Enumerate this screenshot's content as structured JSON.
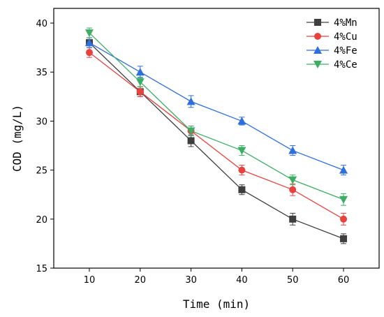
{
  "chart_data": {
    "type": "line",
    "title": "",
    "xlabel": "Time (min)",
    "ylabel": "COD (mg/L)",
    "x": [
      10,
      20,
      30,
      40,
      50,
      60
    ],
    "xlim": [
      3,
      67
    ],
    "ylim": [
      15,
      41.5
    ],
    "xticks": [
      10,
      20,
      30,
      40,
      50,
      60
    ],
    "yticks": [
      15,
      20,
      25,
      30,
      35,
      40
    ],
    "grid": false,
    "legend_position": "top-right",
    "series": [
      {
        "name": "4%Mn",
        "color": "#3f3f3f",
        "marker": "square",
        "values": [
          38,
          33,
          28,
          23,
          20,
          18
        ],
        "errors": [
          0.5,
          0.5,
          0.6,
          0.5,
          0.6,
          0.5
        ]
      },
      {
        "name": "4%Cu",
        "color": "#e8423f",
        "marker": "circle",
        "values": [
          37,
          33,
          29,
          25,
          23,
          20
        ],
        "errors": [
          0.5,
          0.5,
          0.5,
          0.5,
          0.6,
          0.6
        ]
      },
      {
        "name": "4%Fe",
        "color": "#2e6fdc",
        "marker": "triangle-up",
        "values": [
          38,
          35,
          32,
          30,
          27,
          25
        ],
        "errors": [
          0.5,
          0.6,
          0.6,
          0.4,
          0.5,
          0.5
        ]
      },
      {
        "name": "4%Ce",
        "color": "#3cae63",
        "marker": "triangle-down",
        "values": [
          39,
          34,
          29,
          27,
          24,
          22
        ],
        "errors": [
          0.5,
          0.5,
          0.5,
          0.5,
          0.5,
          0.6
        ]
      }
    ]
  }
}
